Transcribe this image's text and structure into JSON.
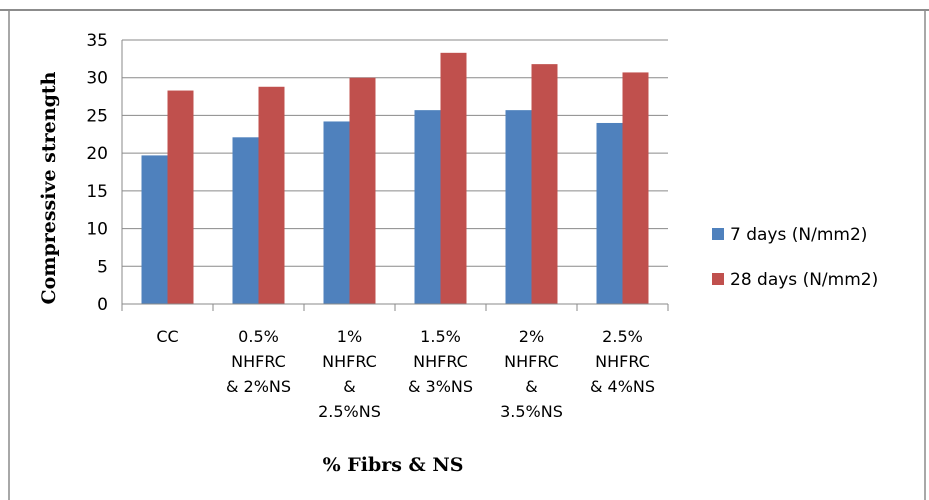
{
  "chart_data": {
    "type": "bar",
    "title": "",
    "xlabel": "% Fibrs & NS",
    "ylabel": "Compressive strength",
    "ylim": [
      0,
      35
    ],
    "ytick_step": 5,
    "yticks": [
      "0",
      "5",
      "10",
      "15",
      "20",
      "25",
      "30",
      "35"
    ],
    "grid": true,
    "legend_position": "right",
    "categories": [
      [
        "CC"
      ],
      [
        "0.5%",
        "NHFRC",
        "& 2%NS"
      ],
      [
        "1%",
        "NHFRC",
        "&",
        "2.5%NS"
      ],
      [
        "1.5%",
        "NHFRC",
        "& 3%NS"
      ],
      [
        "2%",
        "NHFRC",
        "&",
        "3.5%NS"
      ],
      [
        "2.5%",
        "NHFRC",
        "& 4%NS"
      ]
    ],
    "series": [
      {
        "name": "7 days (N/mm2)",
        "color": "#4F81BD",
        "values": [
          19.7,
          22.1,
          24.2,
          25.7,
          25.7,
          24.0
        ]
      },
      {
        "name": "28 days (N/mm2)",
        "color": "#C0504D",
        "values": [
          28.3,
          28.8,
          30.0,
          33.3,
          31.8,
          30.7
        ]
      }
    ]
  }
}
